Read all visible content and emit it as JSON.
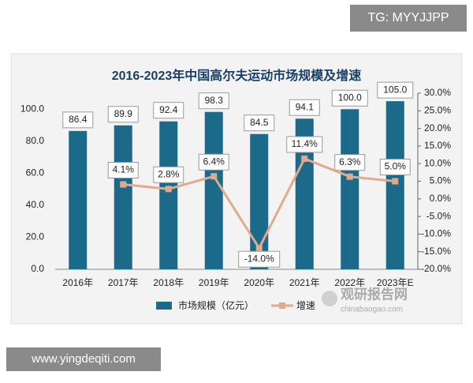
{
  "chart_data": {
    "type": "bar-line",
    "title": "2016-2023年中国高尔夫运动市场规模及增速",
    "categories": [
      "2016年",
      "2017年",
      "2018年",
      "2019年",
      "2020年",
      "2021年",
      "2022年",
      "2023年E"
    ],
    "series": [
      {
        "name": "市场规模（亿元）",
        "type": "bar",
        "color": "#1c6a8a",
        "values": [
          86.4,
          89.9,
          92.4,
          98.3,
          84.5,
          94.1,
          100.0,
          105.0
        ],
        "value_labels": [
          "86.4",
          "89.9",
          "92.4",
          "98.3",
          "84.5",
          "94.1",
          "100.0",
          "105.0"
        ]
      },
      {
        "name": "增速",
        "type": "line",
        "axis": "y2",
        "color": "#e3a98c",
        "values": [
          null,
          4.1,
          2.8,
          6.4,
          -14.0,
          11.4,
          6.3,
          5.0
        ],
        "value_labels": [
          null,
          "4.1%",
          "2.8%",
          "6.4%",
          "-14.0%",
          "11.4%",
          "6.3%",
          "5.0%"
        ]
      }
    ],
    "ylim": [
      0,
      110
    ],
    "yticks": [
      {
        "value": 0,
        "label": "0.0"
      },
      {
        "value": 20,
        "label": "20.0"
      },
      {
        "value": 40,
        "label": "40.0"
      },
      {
        "value": 60,
        "label": "60.0"
      },
      {
        "value": 80,
        "label": "80.0"
      },
      {
        "value": 100,
        "label": "100.0"
      }
    ],
    "y2lim": [
      -20,
      30
    ],
    "y2ticks": [
      {
        "value": -20,
        "label": "-20.0%"
      },
      {
        "value": -15,
        "label": "-15.0%"
      },
      {
        "value": -10,
        "label": "-10.0%"
      },
      {
        "value": -5,
        "label": "-5.0%"
      },
      {
        "value": 0,
        "label": "0.0%"
      },
      {
        "value": 5,
        "label": "5.0%"
      },
      {
        "value": 10,
        "label": "10.0%"
      },
      {
        "value": 15,
        "label": "15.0%"
      },
      {
        "value": 20,
        "label": "20.0%"
      },
      {
        "value": 25,
        "label": "25.0%"
      },
      {
        "value": 30,
        "label": "30.0%"
      }
    ],
    "legend": "bottom"
  },
  "watermarks": {
    "top": "TG: MYYJJPP",
    "bottom": "www.yingdeqiti.com",
    "logo": "观研报告网",
    "logo_url": "chinabaogao.com"
  }
}
